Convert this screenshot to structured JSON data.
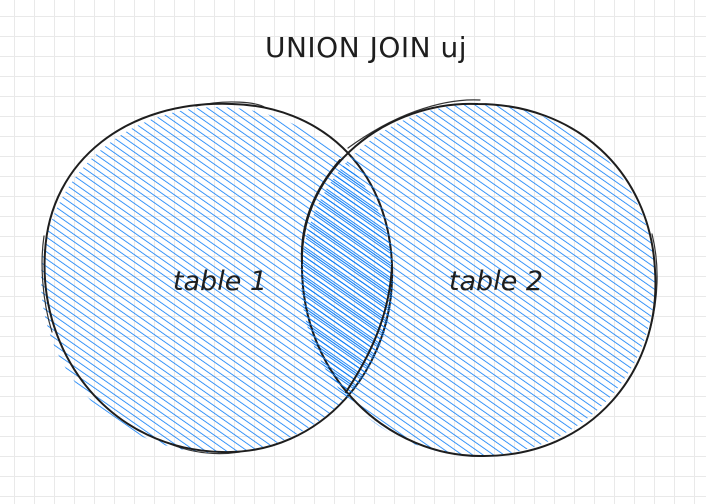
{
  "diagram": {
    "title": "UNION JOIN uj",
    "sets": [
      {
        "label": "table 1"
      },
      {
        "label": "table 2"
      }
    ],
    "colors": {
      "fill": "#0a7cf7",
      "stroke": "#1e1e1e",
      "grid": "#e9e9e9",
      "background": "#ffffff"
    }
  }
}
